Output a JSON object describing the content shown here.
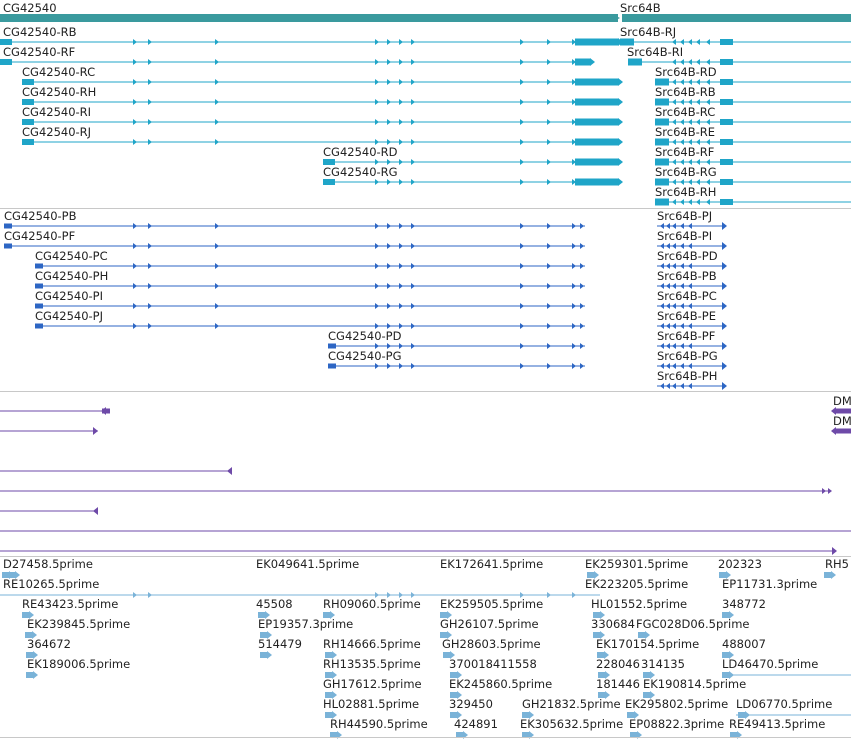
{
  "colors": {
    "gene_bar": "#3a9a9e",
    "transcript_teal": "#1fa5c8",
    "transcript_blue": "#2d66c4",
    "feature_purple": "#6e4aa8",
    "est_light": "#7ab3d8",
    "separator": "#c8c8c8"
  },
  "genes": [
    {
      "name": "CG42540",
      "strand": "+"
    },
    {
      "name": "Src64B",
      "strand": "-"
    }
  ],
  "track_a": {
    "left": [
      "CG42540-RB",
      "CG42540-RF",
      "CG42540-RC",
      "CG42540-RH",
      "CG42540-RI",
      "CG42540-RJ",
      "CG42540-RD",
      "CG42540-RG"
    ],
    "right": [
      "Src64B-RJ",
      "Src64B-RI",
      "Src64B-RD",
      "Src64B-RB",
      "Src64B-RC",
      "Src64B-RE",
      "Src64B-RF",
      "Src64B-RG",
      "Src64B-RH"
    ]
  },
  "track_b": {
    "left": [
      "CG42540-PB",
      "CG42540-PF",
      "CG42540-PC",
      "CG42540-PH",
      "CG42540-PI",
      "CG42540-PJ",
      "CG42540-PD",
      "CG42540-PG"
    ],
    "right": [
      "Src64B-PJ",
      "Src64B-PI",
      "Src64B-PD",
      "Src64B-PB",
      "Src64B-PC",
      "Src64B-PE",
      "Src64B-PF",
      "Src64B-PG",
      "Src64B-PH"
    ]
  },
  "track_c": {
    "labels": [
      "DM",
      "DM"
    ]
  },
  "track_d": {
    "labels": [
      "D27458.5prime",
      "EK049641.5prime",
      "EK172641.5prime",
      "EK259301.5prime",
      "202323",
      "RH5",
      "RE10265.5prime",
      "EK223205.5prime",
      "EP11731.3prime",
      "RE43423.5prime",
      "45508",
      "RH09060.5prime",
      "EK259505.5prime",
      "HL01552.5prime",
      "348772",
      "EK239845.5prime",
      "EP19357.3prime",
      "GH26107.5prime",
      "330684",
      "FGC028D06.5prime",
      "364672",
      "514479",
      "RH14666.5prime",
      "GH28603.5prime",
      "EK170154.5prime",
      "488007",
      "EK189006.5prime",
      "RH13535.5prime",
      "370018411558",
      "228046",
      "314135",
      "LD46470.5prime",
      "GH17612.5prime",
      "EK245860.5prime",
      "181446",
      "EK190814.5prime",
      "HL02881.5prime",
      "329450",
      "GH21832.5prime",
      "EK295802.5prime",
      "LD06770.5prime",
      "RH44590.5prime",
      "424891",
      "EK305632.5prime",
      "EP08822.3prime",
      "RE49413.5prime"
    ]
  }
}
